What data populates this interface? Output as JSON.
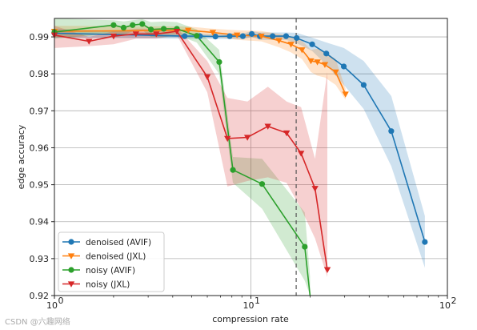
{
  "chart_data": {
    "type": "line",
    "title": "",
    "xlabel": "compression rate",
    "ylabel": "edge accuracy",
    "xscale": "log",
    "xlim": [
      1,
      100
    ],
    "ylim": [
      0.92,
      0.995
    ],
    "xticks": [
      1,
      10,
      100
    ],
    "xtick_labels": [
      "10",
      "10",
      "10"
    ],
    "xtick_exponents": [
      "0",
      "1",
      "2"
    ],
    "yticks": [
      0.92,
      0.93,
      0.94,
      0.95,
      0.96,
      0.97,
      0.98,
      0.99
    ],
    "ytick_labels": [
      "0.92",
      "0.93",
      "0.94",
      "0.95",
      "0.96",
      "0.97",
      "0.98",
      "0.99"
    ],
    "grid": true,
    "legend_position": "bottom-left",
    "vline": {
      "x": 17,
      "style": "dashed",
      "color": "#555555"
    },
    "series": [
      {
        "name": "denoised (AVIF)",
        "color": "#1f77b4",
        "marker": "circle",
        "x": [
          1.0,
          4.6,
          5.5,
          6.6,
          7.8,
          9.1,
          10.1,
          11.1,
          12.9,
          15.1,
          17.1,
          20.5,
          24.2,
          29.7,
          37.5,
          51.8,
          76.8
        ],
        "y": [
          0.991,
          0.9902,
          0.9902,
          0.9901,
          0.9902,
          0.9902,
          0.9908,
          0.9902,
          0.9902,
          0.9902,
          0.9897,
          0.988,
          0.9855,
          0.982,
          0.977,
          0.9645,
          0.9345
        ],
        "y_low": [
          0.9898,
          0.9895,
          0.9895,
          0.9894,
          0.9894,
          0.9894,
          0.99,
          0.9892,
          0.9892,
          0.9892,
          0.9883,
          0.9862,
          0.9825,
          0.977,
          0.9705,
          0.955,
          0.9275
        ],
        "y_high": [
          0.9922,
          0.9909,
          0.9909,
          0.9908,
          0.9909,
          0.9909,
          0.9916,
          0.9912,
          0.9912,
          0.9912,
          0.9911,
          0.9898,
          0.9885,
          0.987,
          0.9835,
          0.974,
          0.9415
        ]
      },
      {
        "name": "denoised (JXL)",
        "color": "#ff7f0e",
        "marker": "triangle-down",
        "x": [
          1.0,
          4.8,
          6.4,
          8.5,
          11.3,
          13.9,
          16.0,
          18.2,
          20.2,
          21.8,
          23.8,
          27.0,
          30.3
        ],
        "y": [
          0.9915,
          0.9918,
          0.9912,
          0.9905,
          0.9902,
          0.989,
          0.988,
          0.9865,
          0.9835,
          0.9832,
          0.9825,
          0.9805,
          0.9745
        ],
        "y_low": [
          0.99,
          0.991,
          0.9902,
          0.9892,
          0.9888,
          0.9872,
          0.9858,
          0.984,
          0.9805,
          0.9795,
          0.979,
          0.977,
          0.973
        ],
        "y_high": [
          0.993,
          0.9928,
          0.9922,
          0.9918,
          0.9916,
          0.9908,
          0.9902,
          0.989,
          0.9865,
          0.9868,
          0.986,
          0.984,
          0.976
        ]
      },
      {
        "name": "noisy (AVIF)",
        "color": "#2ca02c",
        "marker": "circle",
        "x": [
          1.0,
          2.0,
          2.25,
          2.5,
          2.8,
          3.1,
          3.6,
          4.2,
          5.3,
          6.9,
          8.1,
          11.4,
          18.8,
          20.0
        ],
        "y": [
          0.9913,
          0.9932,
          0.9925,
          0.9932,
          0.9935,
          0.992,
          0.9922,
          0.9922,
          0.9903,
          0.9832,
          0.954,
          0.9502,
          0.9332,
          0.92
        ],
        "y_low": [
          0.9895,
          0.991,
          0.9905,
          0.9915,
          0.9918,
          0.99,
          0.99,
          0.9905,
          0.9885,
          0.98,
          0.9505,
          0.9435,
          0.924,
          0.92
        ],
        "y_high": [
          0.9955,
          0.9945,
          0.9942,
          0.9945,
          0.9948,
          0.994,
          0.9942,
          0.994,
          0.992,
          0.9865,
          0.9575,
          0.957,
          0.9425,
          0.925
        ]
      },
      {
        "name": "noisy (JXL)",
        "color": "#d62728",
        "marker": "triangle-down",
        "x": [
          1.0,
          1.5,
          2.0,
          2.6,
          3.3,
          4.2,
          6.0,
          7.6,
          9.6,
          12.2,
          15.2,
          18.0,
          21.2,
          24.5
        ],
        "y": [
          0.9905,
          0.9888,
          0.9902,
          0.9908,
          0.9908,
          0.9915,
          0.9792,
          0.9625,
          0.9628,
          0.9658,
          0.964,
          0.9585,
          0.949,
          0.927
        ],
        "y_low": [
          0.987,
          0.9875,
          0.988,
          0.9895,
          0.9895,
          0.9905,
          0.975,
          0.9495,
          0.951,
          0.952,
          0.9505,
          0.9435,
          0.9355,
          0.925
        ],
        "y_high": [
          0.993,
          0.99,
          0.9915,
          0.9922,
          0.9922,
          0.9925,
          0.9835,
          0.9735,
          0.9725,
          0.9765,
          0.9725,
          0.971,
          0.957,
          0.9805
        ]
      }
    ]
  },
  "watermark": "CSDN @六趣网络"
}
